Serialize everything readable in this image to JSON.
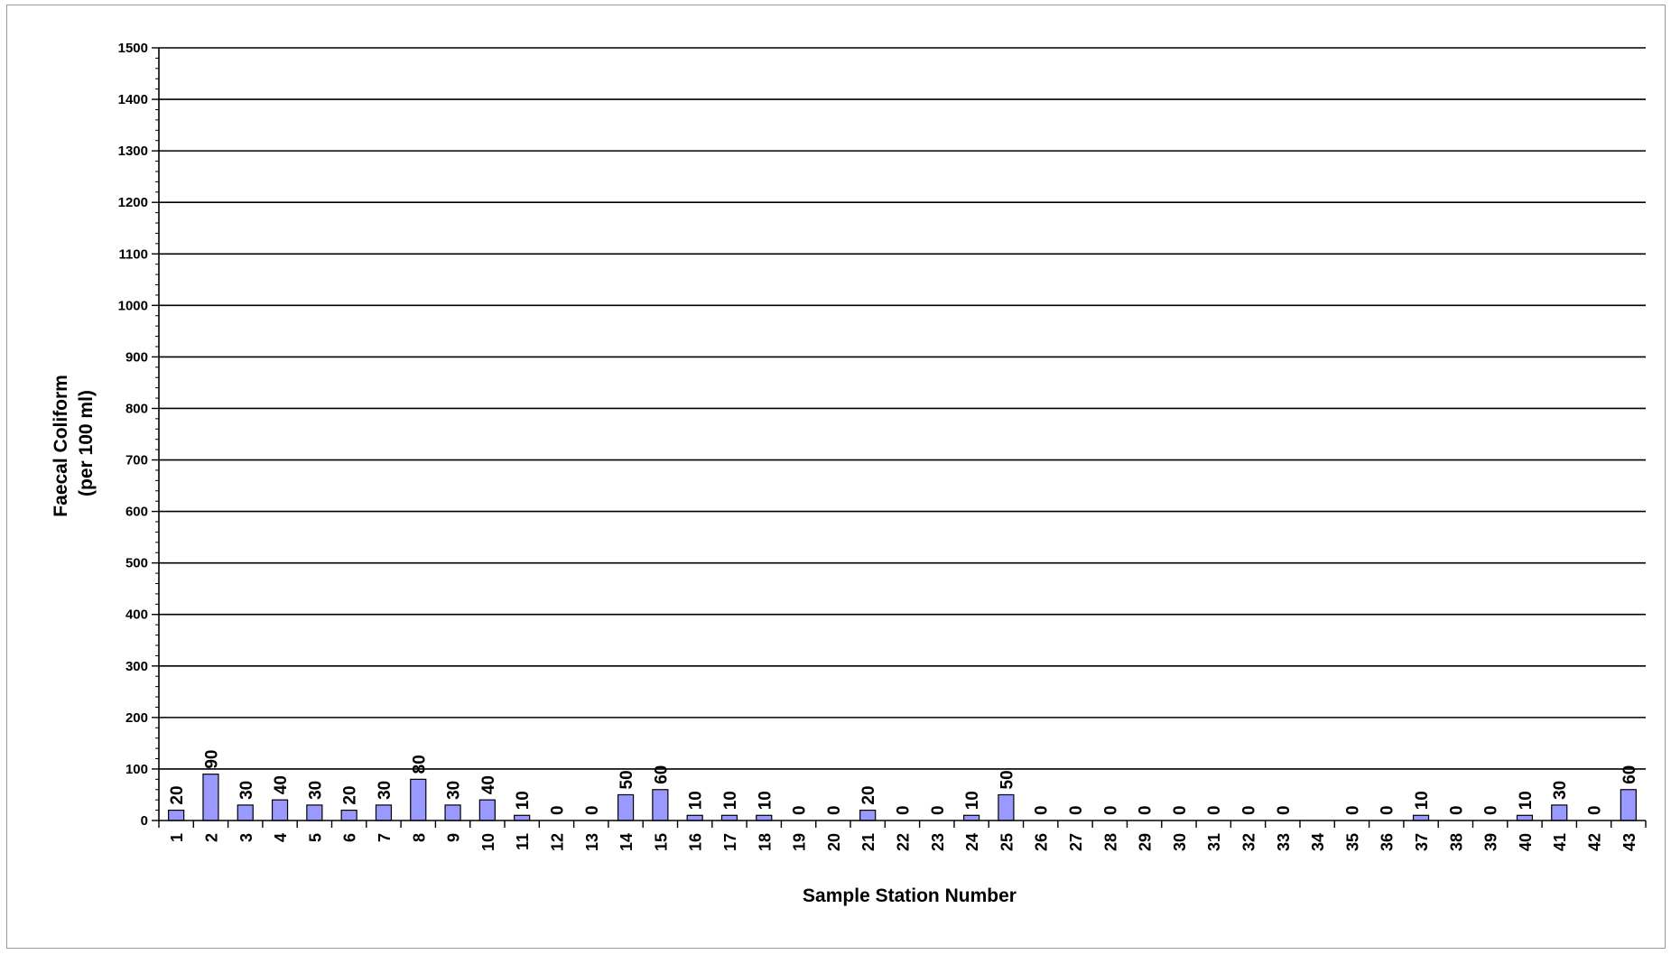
{
  "chart_data": {
    "type": "bar",
    "title": "",
    "xlabel": "Sample Station Number",
    "ylabel_lines": [
      "Faecal Coliform",
      "(per 100 ml)"
    ],
    "ylim": [
      0,
      1500
    ],
    "ytick_step": 100,
    "yticks": [
      "0",
      "100",
      "200",
      "300",
      "400",
      "500",
      "600",
      "700",
      "800",
      "900",
      "1000",
      "1100",
      "1200",
      "1300",
      "1400",
      "1500"
    ],
    "grid": true,
    "legend": "none",
    "categories": [
      "1",
      "2",
      "3",
      "4",
      "5",
      "6",
      "7",
      "8",
      "9",
      "10",
      "11",
      "12",
      "13",
      "14",
      "15",
      "16",
      "17",
      "18",
      "19",
      "20",
      "21",
      "22",
      "23",
      "24",
      "25",
      "26",
      "27",
      "28",
      "29",
      "30",
      "31",
      "32",
      "33",
      "34",
      "35",
      "36",
      "37",
      "38",
      "39",
      "40",
      "41",
      "42",
      "43"
    ],
    "values": [
      20,
      90,
      30,
      40,
      30,
      20,
      30,
      80,
      30,
      40,
      10,
      0,
      0,
      50,
      60,
      10,
      10,
      10,
      0,
      0,
      20,
      0,
      0,
      10,
      50,
      0,
      0,
      0,
      0,
      0,
      0,
      0,
      0,
      null,
      0,
      0,
      10,
      0,
      0,
      10,
      30,
      0,
      60
    ],
    "data_labels": [
      "20",
      "90",
      "30",
      "40",
      "30",
      "20",
      "30",
      "80",
      "30",
      "40",
      "10",
      "0",
      "0",
      "50",
      "60",
      "10",
      "10",
      "10",
      "0",
      "0",
      "20",
      "0",
      "0",
      "10",
      "50",
      "0",
      "0",
      "0",
      "0",
      "0",
      "0",
      "0",
      "0",
      "",
      "0",
      "0",
      "10",
      "0",
      "0",
      "10",
      "30",
      "0",
      "60"
    ],
    "bar_color": "#9999ff",
    "bar_edge_color": "#000000",
    "grid_color": "#000000"
  }
}
